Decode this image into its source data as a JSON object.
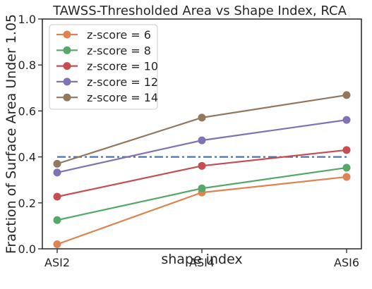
{
  "chart_data": {
    "type": "line",
    "title": "TAWSS-Thresholded Area vs Shape Index, RCA",
    "xlabel": "shape index",
    "ylabel": "Fraction of Surface Area Under 1.05",
    "categories": [
      "ASI2",
      "ASI4",
      "ASI6"
    ],
    "ylim": [
      0,
      1
    ],
    "yticks": [
      0.0,
      0.2,
      0.4,
      0.6,
      0.8,
      1.0
    ],
    "ytick_labels": [
      "0.0",
      "0.2",
      "0.4",
      "0.6",
      "0.8",
      "1.0"
    ],
    "grid": false,
    "legend_position": "top-left",
    "series": [
      {
        "name": "z-score = 6",
        "color": "#dd8452",
        "values": [
          0.02,
          0.245,
          0.313
        ]
      },
      {
        "name": "z-score = 8",
        "color": "#55a868",
        "values": [
          0.125,
          0.263,
          0.353
        ]
      },
      {
        "name": "z-score = 10",
        "color": "#c44e52",
        "values": [
          0.227,
          0.361,
          0.43
        ]
      },
      {
        "name": "z-score = 12",
        "color": "#8172b3",
        "values": [
          0.332,
          0.472,
          0.561
        ]
      },
      {
        "name": "z-score = 14",
        "color": "#937860",
        "values": [
          0.37,
          0.571,
          0.669
        ]
      }
    ],
    "reference_line": {
      "y": 0.4,
      "color": "#4c72b0",
      "style": "dash-dot"
    }
  }
}
